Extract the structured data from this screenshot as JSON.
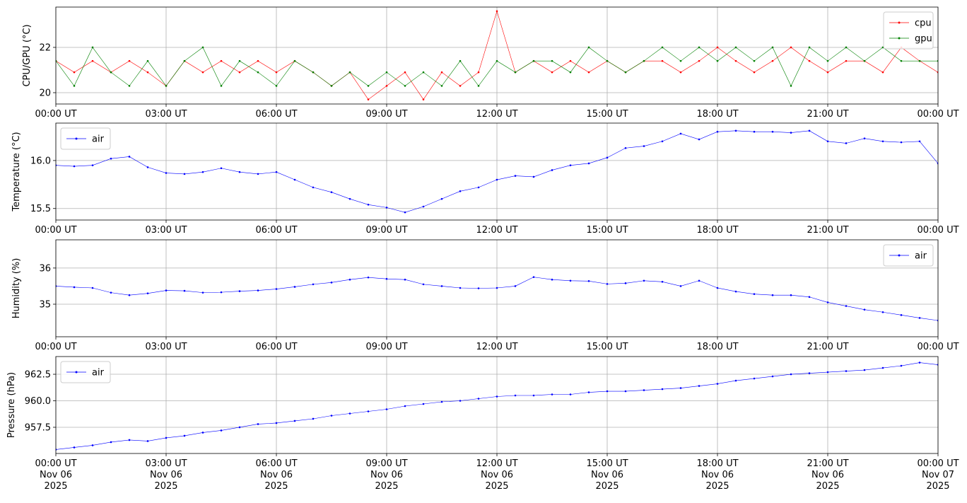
{
  "chart_data": [
    {
      "type": "line",
      "ylabel": "CPU/GPU (°C)",
      "ylim": [
        19.5,
        23.78
      ],
      "yticks": [
        {
          "value": 20,
          "label": "20"
        },
        {
          "value": 22,
          "label": "22"
        }
      ],
      "legend": "top-right",
      "grid": true,
      "series": [
        {
          "name": "cpu",
          "color": "#ff0000",
          "values": [
            21.4,
            20.9,
            21.4,
            20.9,
            21.4,
            20.9,
            20.3,
            21.4,
            20.9,
            21.4,
            20.9,
            21.4,
            20.9,
            21.4,
            20.9,
            20.3,
            20.9,
            19.7,
            20.3,
            20.9,
            19.7,
            20.9,
            20.3,
            20.9,
            23.6,
            20.9,
            21.4,
            20.9,
            21.4,
            20.9,
            21.4,
            20.9,
            21.4,
            21.4,
            20.9,
            21.4,
            22.0,
            21.4,
            20.9,
            21.4,
            22.0,
            21.4,
            20.9,
            21.4,
            21.4,
            20.9,
            22.0,
            21.4,
            20.9
          ]
        },
        {
          "name": "gpu",
          "color": "#008000",
          "values": [
            21.4,
            20.3,
            22.0,
            20.9,
            20.3,
            21.4,
            20.3,
            21.4,
            22.0,
            20.3,
            21.4,
            20.9,
            20.3,
            21.4,
            20.9,
            20.3,
            20.9,
            20.3,
            20.9,
            20.3,
            20.9,
            20.3,
            21.4,
            20.3,
            21.4,
            20.9,
            21.4,
            21.4,
            20.9,
            22.0,
            21.4,
            20.9,
            21.4,
            22.0,
            21.4,
            22.0,
            21.4,
            22.0,
            21.4,
            22.0,
            20.3,
            22.0,
            21.4,
            22.0,
            21.4,
            22.0,
            21.4,
            21.4,
            21.4
          ]
        }
      ]
    },
    {
      "type": "line",
      "ylabel": "Temperature (°C)",
      "ylim": [
        15.38,
        16.39
      ],
      "yticks": [
        {
          "value": 15.5,
          "label": "15.5"
        },
        {
          "value": 16.0,
          "label": "16.0"
        }
      ],
      "legend": "top-left",
      "grid": true,
      "series": [
        {
          "name": "air",
          "color": "#0000ff",
          "values": [
            15.95,
            15.94,
            15.95,
            16.02,
            16.04,
            15.93,
            15.87,
            15.86,
            15.88,
            15.92,
            15.88,
            15.86,
            15.88,
            15.8,
            15.72,
            15.67,
            15.6,
            15.54,
            15.51,
            15.46,
            15.52,
            15.6,
            15.68,
            15.72,
            15.8,
            15.84,
            15.83,
            15.9,
            15.95,
            15.97,
            16.03,
            16.13,
            16.15,
            16.2,
            16.28,
            16.22,
            16.3,
            16.31,
            16.3,
            16.3,
            16.29,
            16.31,
            16.2,
            16.18,
            16.23,
            16.2,
            16.19,
            16.2,
            15.97
          ]
        }
      ]
    },
    {
      "type": "line",
      "ylabel": "Humidity (%)",
      "ylim": [
        34.1,
        36.78
      ],
      "yticks": [
        {
          "value": 35,
          "label": "35"
        },
        {
          "value": 36,
          "label": "36"
        }
      ],
      "legend": "top-right",
      "grid": true,
      "series": [
        {
          "name": "air",
          "color": "#0000ff",
          "values": [
            35.5,
            35.47,
            35.45,
            35.32,
            35.25,
            35.3,
            35.38,
            35.37,
            35.32,
            35.33,
            35.36,
            35.38,
            35.42,
            35.48,
            35.55,
            35.6,
            35.68,
            35.74,
            35.7,
            35.68,
            35.55,
            35.5,
            35.45,
            35.44,
            35.45,
            35.5,
            35.75,
            35.68,
            35.65,
            35.64,
            35.56,
            35.58,
            35.65,
            35.62,
            35.5,
            35.65,
            35.45,
            35.35,
            35.28,
            35.25,
            35.25,
            35.2,
            35.05,
            34.95,
            34.85,
            34.78,
            34.7,
            34.62,
            34.55
          ]
        }
      ]
    },
    {
      "type": "line",
      "ylabel": "Pressure (hPa)",
      "ylim": [
        955.03,
        964.17
      ],
      "yticks": [
        {
          "value": 957.5,
          "label": "957.5"
        },
        {
          "value": 960.0,
          "label": "960.0"
        },
        {
          "value": 962.5,
          "label": "962.5"
        }
      ],
      "legend": "top-left",
      "grid": true,
      "series": [
        {
          "name": "air",
          "color": "#0000ff",
          "values": [
            955.4,
            955.6,
            955.8,
            956.1,
            956.3,
            956.2,
            956.5,
            956.7,
            957.0,
            957.2,
            957.5,
            957.8,
            957.9,
            958.1,
            958.3,
            958.6,
            958.8,
            959.0,
            959.2,
            959.5,
            959.7,
            959.9,
            960.0,
            960.2,
            960.4,
            960.5,
            960.5,
            960.6,
            960.6,
            960.8,
            960.9,
            960.9,
            961.0,
            961.1,
            961.2,
            961.4,
            961.6,
            961.9,
            962.1,
            962.3,
            962.5,
            962.6,
            962.7,
            962.8,
            962.9,
            963.1,
            963.3,
            963.6,
            963.4
          ]
        }
      ]
    }
  ],
  "x": {
    "start": "2025-11-06 00:00",
    "step_minutes": 30,
    "xlim": [
      "2025-11-06 00:00",
      "2025-11-07 00:00"
    ],
    "ticks": [
      "00:00 UT",
      "03:00 UT",
      "06:00 UT",
      "09:00 UT",
      "12:00 UT",
      "15:00 UT",
      "18:00 UT",
      "21:00 UT",
      "00:00 UT"
    ],
    "tick_dates": [
      "Nov 06",
      "Nov 06",
      "Nov 06",
      "Nov 06",
      "Nov 06",
      "Nov 06",
      "Nov 06",
      "Nov 06",
      "Nov 07"
    ],
    "tick_years": [
      "2025",
      "2025",
      "2025",
      "2025",
      "2025",
      "2025",
      "2025",
      "2025",
      "2025"
    ]
  }
}
